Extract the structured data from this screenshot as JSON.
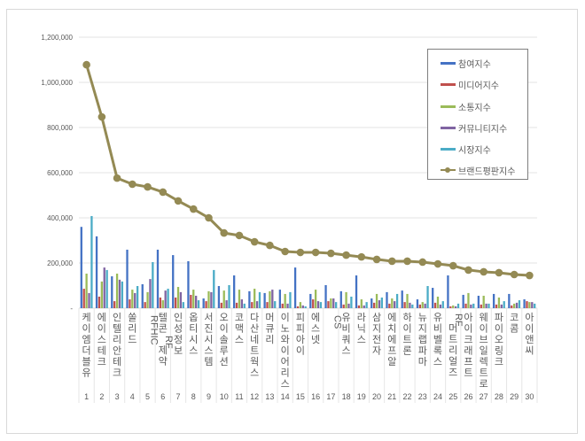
{
  "chart_data": {
    "type": "bar",
    "title": "",
    "xlabel": "",
    "ylabel": "",
    "ylim": [
      0,
      1200000
    ],
    "y_ticks": [
      "-",
      "200,000",
      "400,000",
      "600,000",
      "800,000",
      "1,000,000",
      "1,200,000"
    ],
    "grid": true,
    "legend_position": "right-top",
    "categories": [
      "케이엠더블유",
      "에이스테크",
      "인텔리안테크",
      "쏠리드",
      "RFHIC",
      "텔콘RF제약",
      "인성정보",
      "옵티시스",
      "서진시스템",
      "오이솔루션",
      "코맥스",
      "다산네트웍스",
      "머큐리",
      "이노와이어리스",
      "피피아이",
      "에스넷",
      "CS",
      "유비쿼스",
      "라닉스",
      "삼지전자",
      "에치에프알",
      "하이트론",
      "뉴지랩파마",
      "유비벨록스",
      "RF머트리얼즈",
      "아이크래프트",
      "웨이브일렉트로",
      "파이오링크",
      "코콤",
      "아이앤씨"
    ],
    "category_numbers": [
      "1",
      "2",
      "3",
      "4",
      "5",
      "6",
      "7",
      "8",
      "9",
      "10",
      "11",
      "12",
      "13",
      "14",
      "15",
      "16",
      "17",
      "18",
      "19",
      "20",
      "21",
      "22",
      "23",
      "24",
      "25",
      "26",
      "27",
      "28",
      "29",
      "30"
    ],
    "series": [
      {
        "name": "참여지수",
        "type": "bar",
        "color": "#4472c4",
        "values": [
          360000,
          318000,
          141000,
          259000,
          106000,
          259000,
          235000,
          208000,
          43000,
          98000,
          145000,
          75000,
          67000,
          82000,
          180000,
          63000,
          102000,
          75000,
          145000,
          43000,
          71000,
          78000,
          39000,
          90000,
          145000,
          59000,
          55000,
          63000,
          63000,
          39000
        ]
      },
      {
        "name": "미디어지수",
        "type": "bar",
        "color": "#c0504d",
        "values": [
          86000,
          51000,
          31000,
          39000,
          27000,
          47000,
          47000,
          59000,
          31000,
          24000,
          24000,
          27000,
          27000,
          20000,
          8000,
          39000,
          31000,
          16000,
          12000,
          24000,
          20000,
          27000,
          16000,
          24000,
          8000,
          20000,
          16000,
          16000,
          12000,
          31000
        ]
      },
      {
        "name": "소통지수",
        "type": "bar",
        "color": "#9bbb59",
        "values": [
          153000,
          118000,
          153000,
          82000,
          71000,
          35000,
          94000,
          82000,
          75000,
          78000,
          82000,
          86000,
          75000,
          63000,
          27000,
          82000,
          43000,
          71000,
          39000,
          63000,
          43000,
          63000,
          27000,
          51000,
          12000,
          67000,
          55000,
          47000,
          20000,
          27000
        ]
      },
      {
        "name": "커뮤니티지수",
        "type": "bar",
        "color": "#8064a2",
        "values": [
          67000,
          180000,
          126000,
          67000,
          129000,
          78000,
          71000,
          55000,
          71000,
          35000,
          39000,
          31000,
          82000,
          20000,
          12000,
          31000,
          43000,
          20000,
          12000,
          35000,
          31000,
          24000,
          20000,
          16000,
          8000,
          16000,
          20000,
          16000,
          24000,
          27000
        ]
      },
      {
        "name": "시장지수",
        "type": "bar",
        "color": "#4bacc6",
        "values": [
          408000,
          169000,
          118000,
          98000,
          204000,
          86000,
          27000,
          35000,
          169000,
          102000,
          20000,
          71000,
          31000,
          71000,
          8000,
          27000,
          27000,
          51000,
          27000,
          47000,
          63000,
          16000,
          98000,
          31000,
          20000,
          20000,
          20000,
          31000,
          35000,
          20000
        ]
      },
      {
        "name": "브랜드평판지수",
        "type": "line",
        "color": "#948a54",
        "values": [
          1078000,
          847000,
          576000,
          549000,
          537000,
          514000,
          475000,
          439000,
          400000,
          333000,
          322000,
          294000,
          278000,
          251000,
          247000,
          247000,
          243000,
          235000,
          227000,
          216000,
          208000,
          208000,
          204000,
          196000,
          188000,
          169000,
          161000,
          157000,
          149000,
          145000
        ]
      }
    ]
  }
}
